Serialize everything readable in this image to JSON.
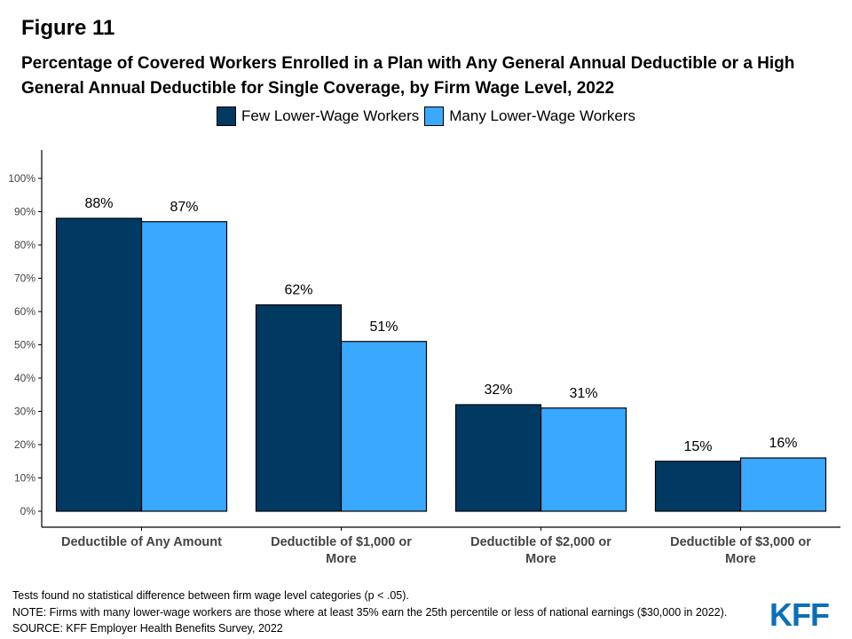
{
  "figure_label": "Figure 11",
  "title": "Percentage of Covered Workers Enrolled in a Plan with Any General Annual Deductible or a High General Annual Deductible for Single Coverage, by Firm Wage Level, 2022",
  "notes": {
    "line1": "Tests found no statistical difference between firm wage level categories (p < .05).",
    "line2": "NOTE: Firms with many lower-wage workers are those where at least 35% earn the 25th percentile or less of national earnings ($30,000 in 2022).",
    "line3": "SOURCE: KFF Employer Health Benefits Survey, 2022"
  },
  "logo_text": "KFF",
  "colors": {
    "few": "#003a63",
    "many": "#3aa8ff",
    "logo": "#0b6fb8"
  },
  "chart_data": {
    "type": "bar",
    "categories": [
      [
        "Deductible of Any Amount"
      ],
      [
        "Deductible of $1,000 or",
        "More"
      ],
      [
        "Deductible of $2,000 or",
        "More"
      ],
      [
        "Deductible of $3,000 or",
        "More"
      ]
    ],
    "series": [
      {
        "name": "Few Lower-Wage Workers",
        "values": [
          88,
          62,
          32,
          15
        ],
        "labels": [
          "88%",
          "62%",
          "32%",
          "15%"
        ],
        "color": "#003a63"
      },
      {
        "name": "Many Lower-Wage Workers",
        "values": [
          87,
          51,
          31,
          16
        ],
        "labels": [
          "87%",
          "51%",
          "31%",
          "16%"
        ],
        "color": "#3aa8ff"
      }
    ],
    "yticks": [
      "0%",
      "10%",
      "20%",
      "30%",
      "40%",
      "50%",
      "60%",
      "70%",
      "80%",
      "90%",
      "100%"
    ],
    "ylim": [
      0,
      100
    ],
    "grid": false,
    "legend": "top-center"
  }
}
